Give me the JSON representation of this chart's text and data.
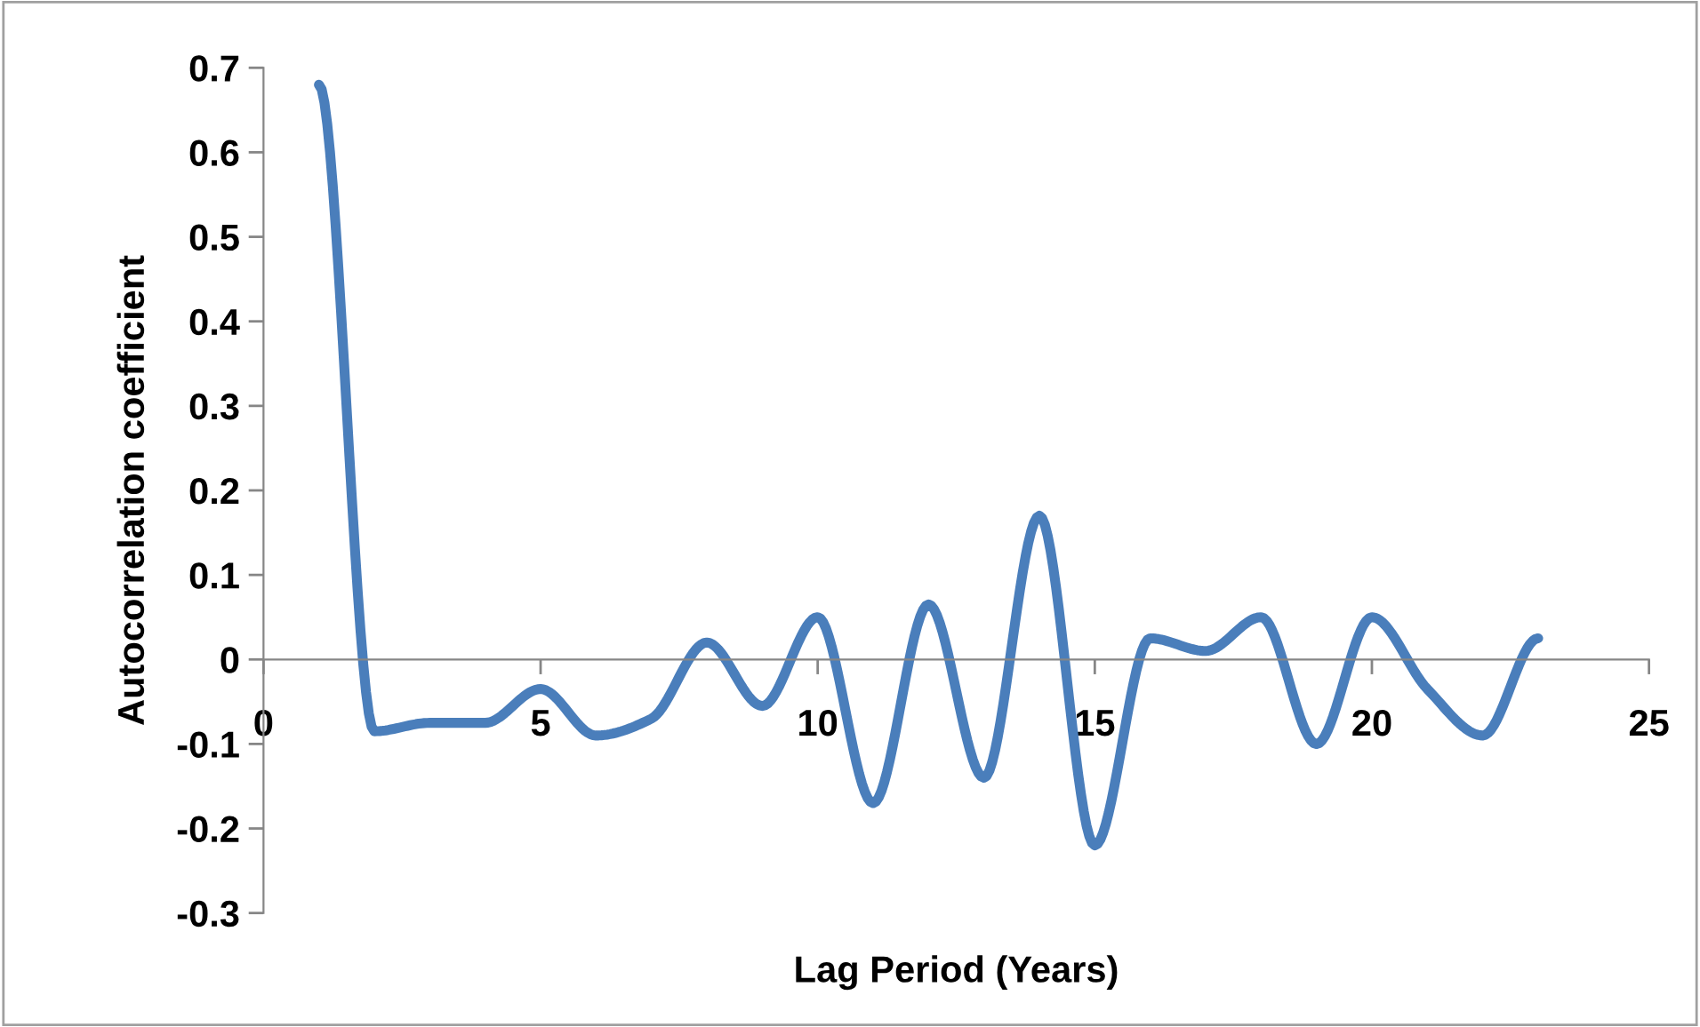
{
  "chart_data": {
    "type": "line",
    "xlabel": "Lag Period (Years)",
    "ylabel": "Autocorrelation coefficient",
    "x": [
      1,
      2,
      3,
      4,
      5,
      6,
      7,
      8,
      9,
      10,
      11,
      12,
      13,
      14,
      15,
      16,
      17,
      18,
      19,
      20,
      21,
      22,
      23
    ],
    "series": [
      {
        "color": "#4a7ebb",
        "values": [
          0.68,
          -0.085,
          -0.075,
          -0.075,
          -0.035,
          -0.09,
          -0.07,
          0.02,
          -0.055,
          0.05,
          -0.17,
          0.065,
          -0.14,
          0.17,
          -0.22,
          0.025,
          0.01,
          0.05,
          -0.1,
          0.05,
          -0.035,
          -0.09,
          0.025
        ]
      }
    ],
    "xlim": [
      0,
      25
    ],
    "xticks": [
      0,
      5,
      10,
      15,
      20,
      25
    ],
    "ylim": [
      -0.3,
      0.7
    ],
    "yticks": [
      -0.3,
      -0.2,
      -0.1,
      0,
      0.1,
      0.2,
      0.3,
      0.4,
      0.5,
      0.6,
      0.7
    ],
    "grid": false,
    "legend": false,
    "marker": "none",
    "line_style": "solid"
  }
}
